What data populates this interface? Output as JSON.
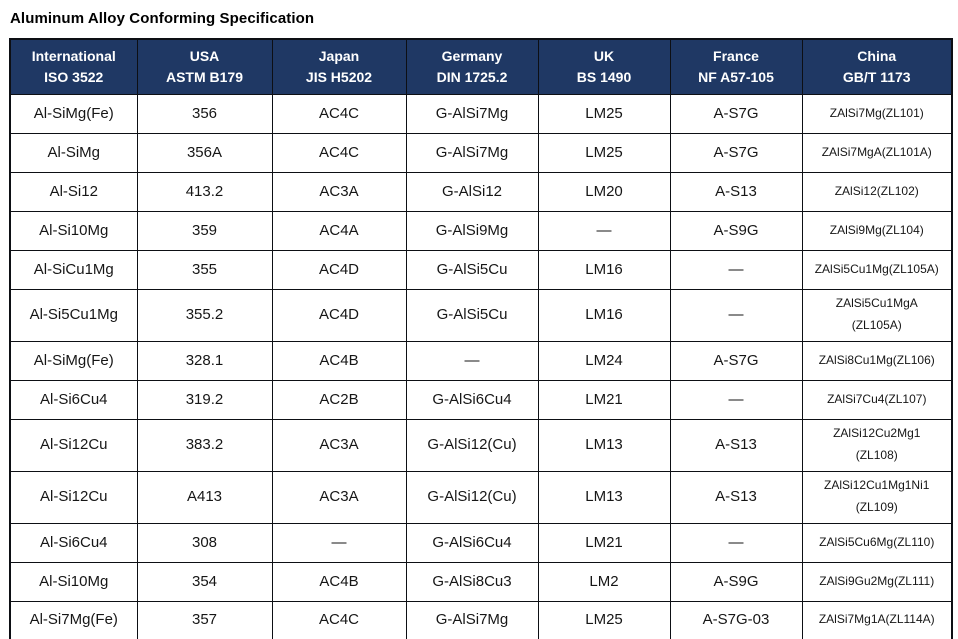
{
  "title": "Aluminum Alloy Conforming Specification",
  "colors": {
    "header_bg": "#1f3864",
    "header_text": "#ffffff",
    "border": "#0d0f14",
    "body_text": "#161616"
  },
  "table": {
    "headers": [
      {
        "country": "International",
        "standard": "ISO 3522"
      },
      {
        "country": "USA",
        "standard": "ASTM B179"
      },
      {
        "country": "Japan",
        "standard": "JIS H5202"
      },
      {
        "country": "Germany",
        "standard": "DIN 1725.2"
      },
      {
        "country": "UK",
        "standard": "BS 1490"
      },
      {
        "country": "France",
        "standard": "NF A57-105"
      },
      {
        "country": "China",
        "standard": "GB/T 1173"
      }
    ],
    "rows": [
      {
        "cells": [
          "Al-SiMg(Fe)",
          "356",
          "AC4C",
          "G-AlSi7Mg",
          "LM25",
          "A-S7G",
          "ZAlSi7Mg(ZL101)"
        ],
        "tall": false
      },
      {
        "cells": [
          "Al-SiMg",
          "356A",
          "AC4C",
          "G-AlSi7Mg",
          "LM25",
          "A-S7G",
          "ZAlSi7MgA(ZL101A)"
        ],
        "tall": false
      },
      {
        "cells": [
          "Al-Si12",
          "413.2",
          "AC3A",
          "G-AlSi12",
          "LM20",
          "A-S13",
          "ZAlSi12(ZL102)"
        ],
        "tall": false
      },
      {
        "cells": [
          "Al-Si10Mg",
          "359",
          "AC4A",
          "G-AlSi9Mg",
          "—",
          "A-S9G",
          "ZAlSi9Mg(ZL104)"
        ],
        "tall": false
      },
      {
        "cells": [
          "Al-SiCu1Mg",
          "355",
          "AC4D",
          "G-AlSi5Cu",
          "LM16",
          "—",
          "ZAlSi5Cu1Mg(ZL105A)"
        ],
        "tall": false
      },
      {
        "cells": [
          "Al-Si5Cu1Mg",
          "355.2",
          "AC4D",
          "G-AlSi5Cu",
          "LM16",
          "—",
          "ZAlSi5Cu1MgA\n(ZL105A)"
        ],
        "tall": true
      },
      {
        "cells": [
          "Al-SiMg(Fe)",
          "328.1",
          "AC4B",
          "—",
          "LM24",
          "A-S7G",
          "ZAlSi8Cu1Mg(ZL106)"
        ],
        "tall": false
      },
      {
        "cells": [
          "Al-Si6Cu4",
          "319.2",
          "AC2B",
          "G-AlSi6Cu4",
          "LM21",
          "—",
          "ZAlSi7Cu4(ZL107)"
        ],
        "tall": false
      },
      {
        "cells": [
          "Al-Si12Cu",
          "383.2",
          "AC3A",
          "G-AlSi12(Cu)",
          "LM13",
          "A-S13",
          "ZAlSi12Cu2Mg1\n(ZL108)"
        ],
        "tall": true
      },
      {
        "cells": [
          "Al-Si12Cu",
          "A413",
          "AC3A",
          "G-AlSi12(Cu)",
          "LM13",
          "A-S13",
          "ZAlSi12Cu1Mg1Ni1\n(ZL109)"
        ],
        "tall": true
      },
      {
        "cells": [
          "Al-Si6Cu4",
          "308",
          "—",
          "G-AlSi6Cu4",
          "LM21",
          "—",
          "ZAlSi5Cu6Mg(ZL110)"
        ],
        "tall": false
      },
      {
        "cells": [
          "Al-Si10Mg",
          "354",
          "AC4B",
          "G-AlSi8Cu3",
          "LM2",
          "A-S9G",
          "ZAlSi9Gu2Mg(ZL111)"
        ],
        "tall": false
      },
      {
        "cells": [
          "Al-Si7Mg(Fe)",
          "357",
          "AC4C",
          "G-AlSi7Mg",
          "LM25",
          "A-S7G-03",
          "ZAlSi7Mg1A(ZL114A)"
        ],
        "tall": false
      }
    ]
  }
}
